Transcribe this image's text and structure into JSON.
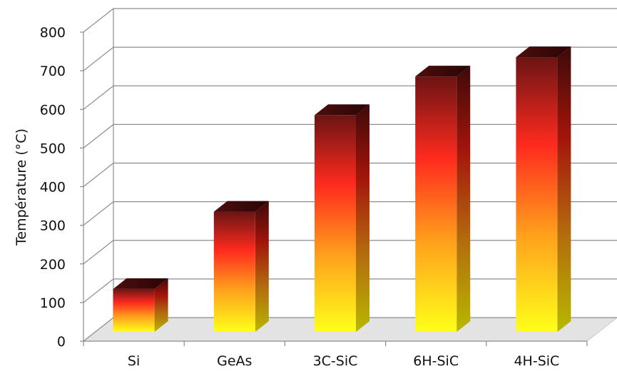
{
  "chart_data": {
    "type": "bar",
    "title": "",
    "xlabel": "",
    "ylabel": "Température (°C)",
    "categories": [
      "Si",
      "GeAs",
      "3C-SiC",
      "6H-SiC",
      "4H-SiC"
    ],
    "values": [
      150,
      350,
      600,
      700,
      750
    ],
    "ylim": [
      0,
      800
    ],
    "yticks": [
      "0",
      "100",
      "200",
      "300",
      "400",
      "500",
      "600",
      "700",
      "800"
    ],
    "grid": true,
    "style": "3d-column",
    "colors": {
      "bar_bottom": "#ffff1a",
      "bar_mid": "#ffa11c",
      "bar_hot": "#ff2a1e",
      "bar_top": "#6b1414",
      "grid": "#8c8c8c",
      "floor": "#e3e3e3"
    }
  }
}
